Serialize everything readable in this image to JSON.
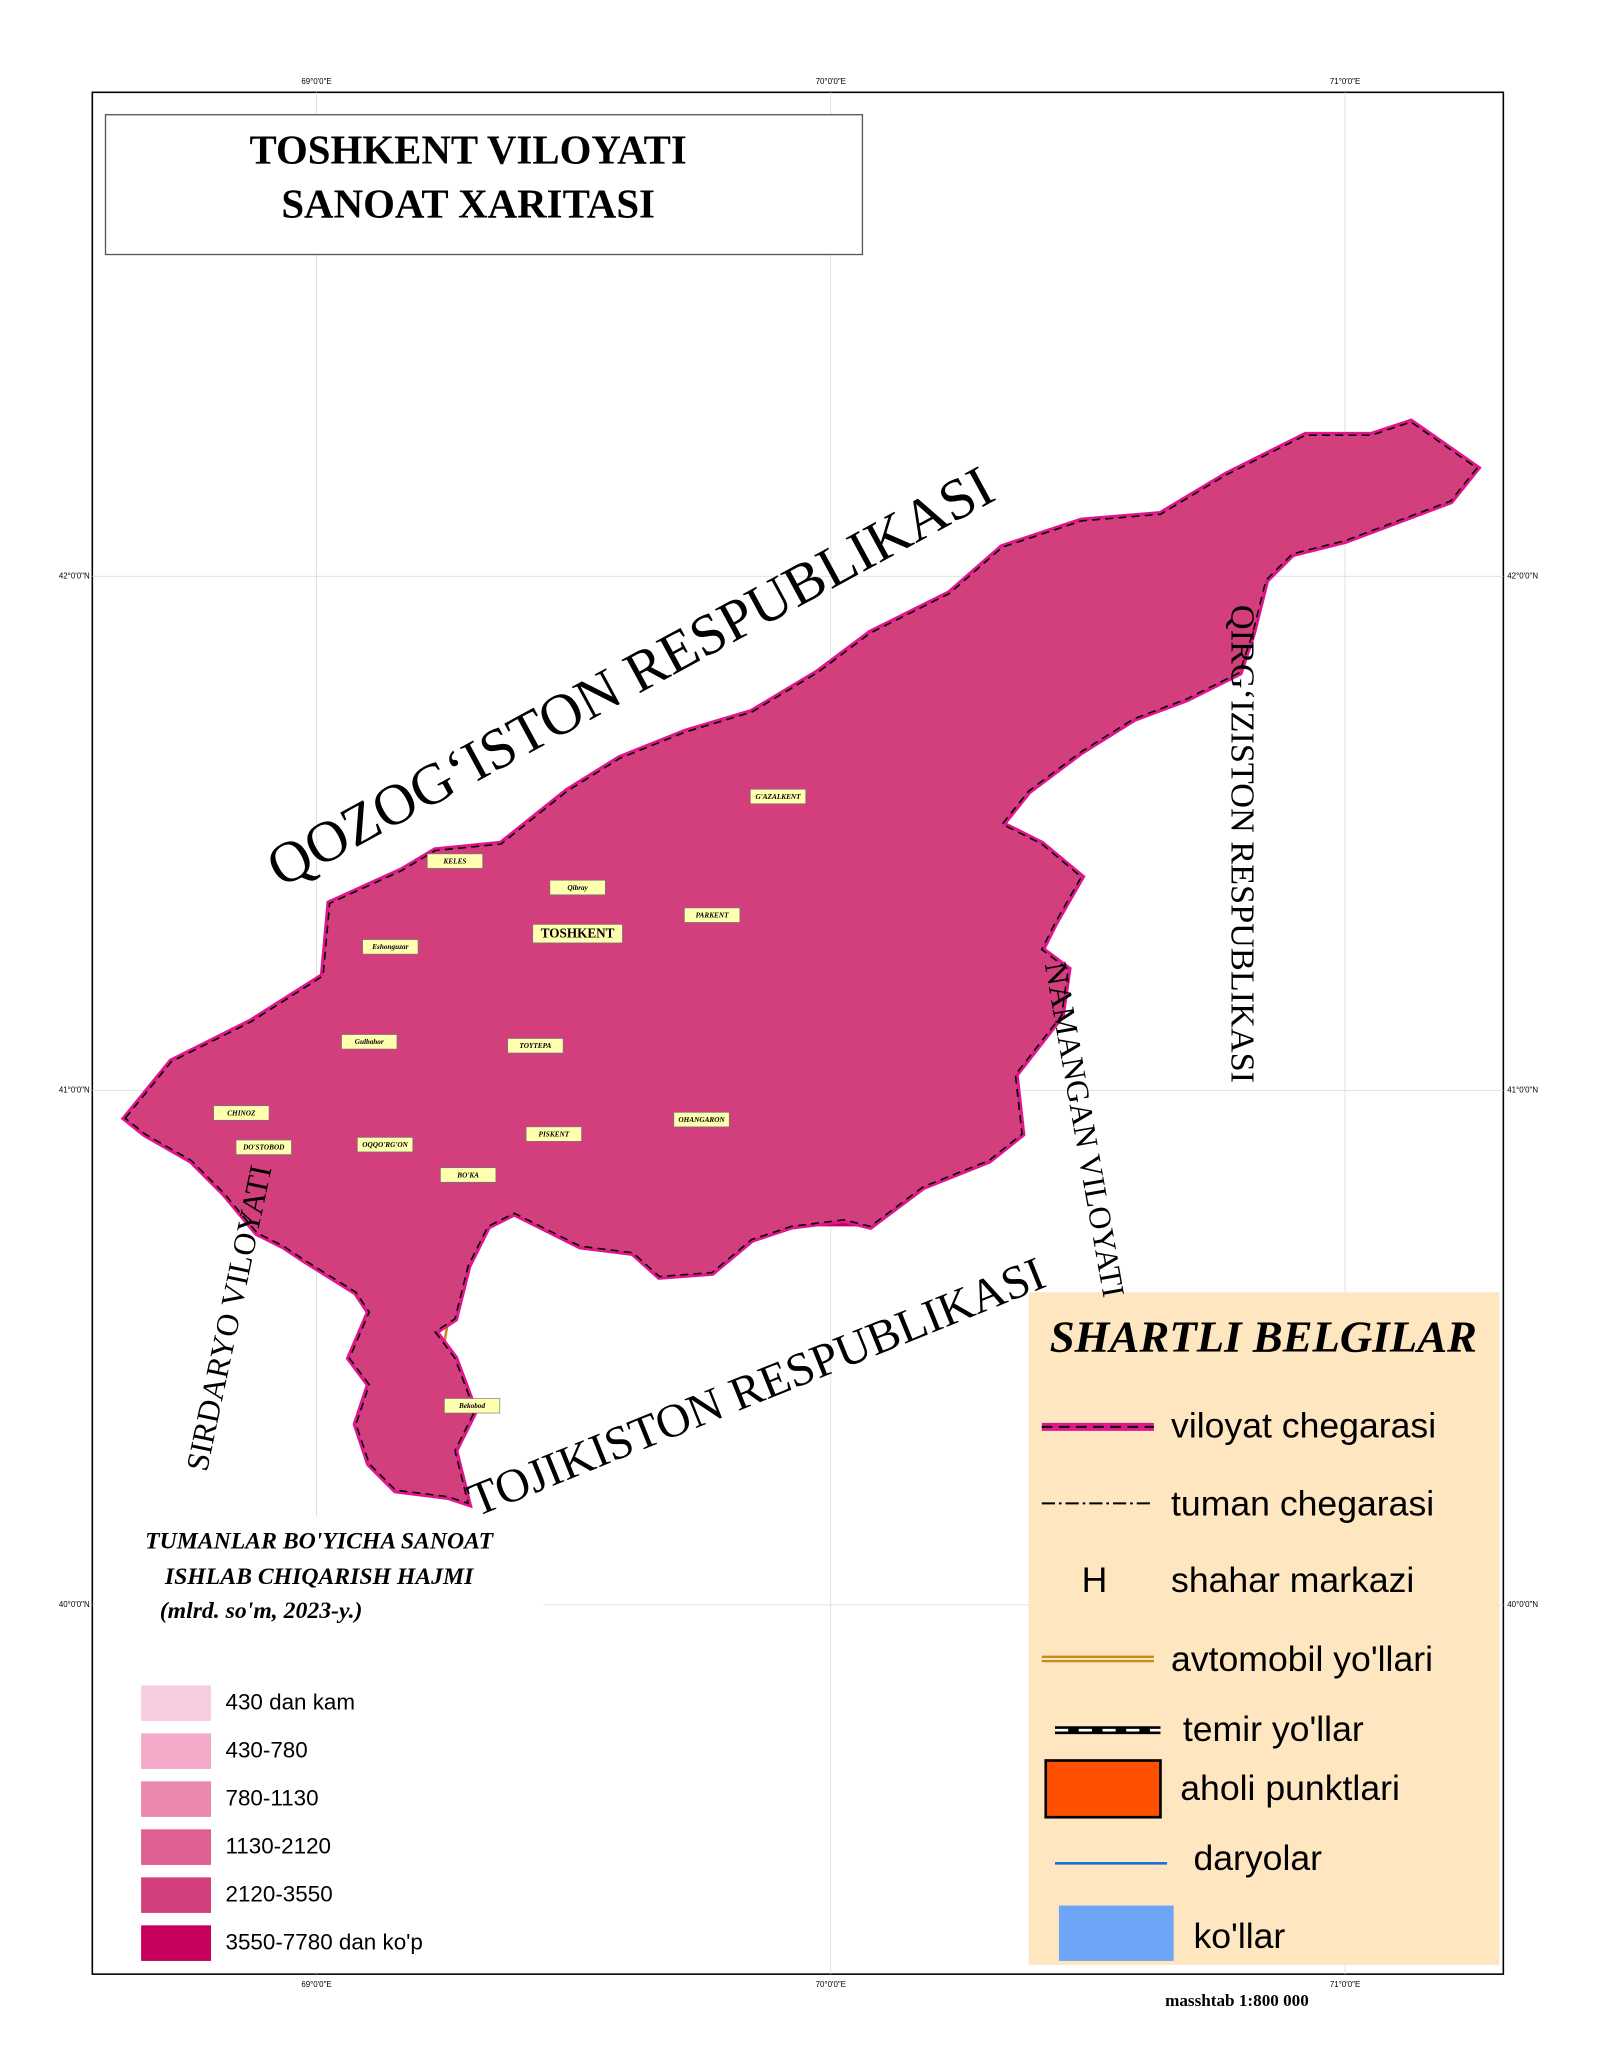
{
  "title": [
    "TOSHKENT VILOYATI",
    "SANOAT  XARITASI"
  ],
  "coordinates": {
    "longitudes": [
      "69°0'0\"E",
      "70°0'0\"E",
      "71°0'0\"E"
    ],
    "latitudes": [
      "42°0'0\"N",
      "41°0'0\"N",
      "40°0'0\"N"
    ]
  },
  "neighbors": [
    "QOZOG‘ISTON RESPUBLIKASI",
    "QIRG‘IZISTON RESPUBLIKASI",
    "NAMANGAN VILOYATI",
    "TOJIKISTON RESPUBLIKASI",
    "SIRDARYO VILOYATI"
  ],
  "settlements": [
    "KELES",
    "Qibray",
    "TOSHKENT",
    "PARKENT",
    "G'AZALKENT",
    "Eshonguzar",
    "Gulbahor",
    "TOYTEPA",
    "OHANGARON",
    "CHINOZ",
    "DO'STOBOD",
    "OQQO'RG'ON",
    "PISKENT",
    "BO'KA",
    "Bekobod"
  ],
  "legend": {
    "title": "SHARTLI BELGILAR",
    "items": [
      {
        "label": "viloyat chegarasi"
      },
      {
        "label": "tuman chegarasi"
      },
      {
        "symbol": "H",
        "label": "shahar markazi"
      },
      {
        "label": "avtomobil yo'llari"
      },
      {
        "label": "temir yo'llar"
      },
      {
        "label": "aholi punktlari"
      },
      {
        "label": "daryolar"
      },
      {
        "label": "ko'llar"
      }
    ]
  },
  "classification": {
    "title": [
      "TUMANLAR BO'YICHA SANOAT",
      "ISHLAB CHIQARISH HAJMI",
      "(mlrd. so'm, 2023-y.)"
    ],
    "classes": [
      {
        "label": "430 dan kam",
        "color": "#f9cde0"
      },
      {
        "label": "430-780",
        "color": "#f3aac8"
      },
      {
        "label": "780-1130",
        "color": "#eb88ae"
      },
      {
        "label": "1130-2120",
        "color": "#de5f91"
      },
      {
        "label": "2120-3550",
        "color": "#d23f7c"
      },
      {
        "label": "3550-7780 dan ko'p",
        "color": "#c7005e"
      }
    ]
  },
  "scale": "masshtab 1:800 000"
}
